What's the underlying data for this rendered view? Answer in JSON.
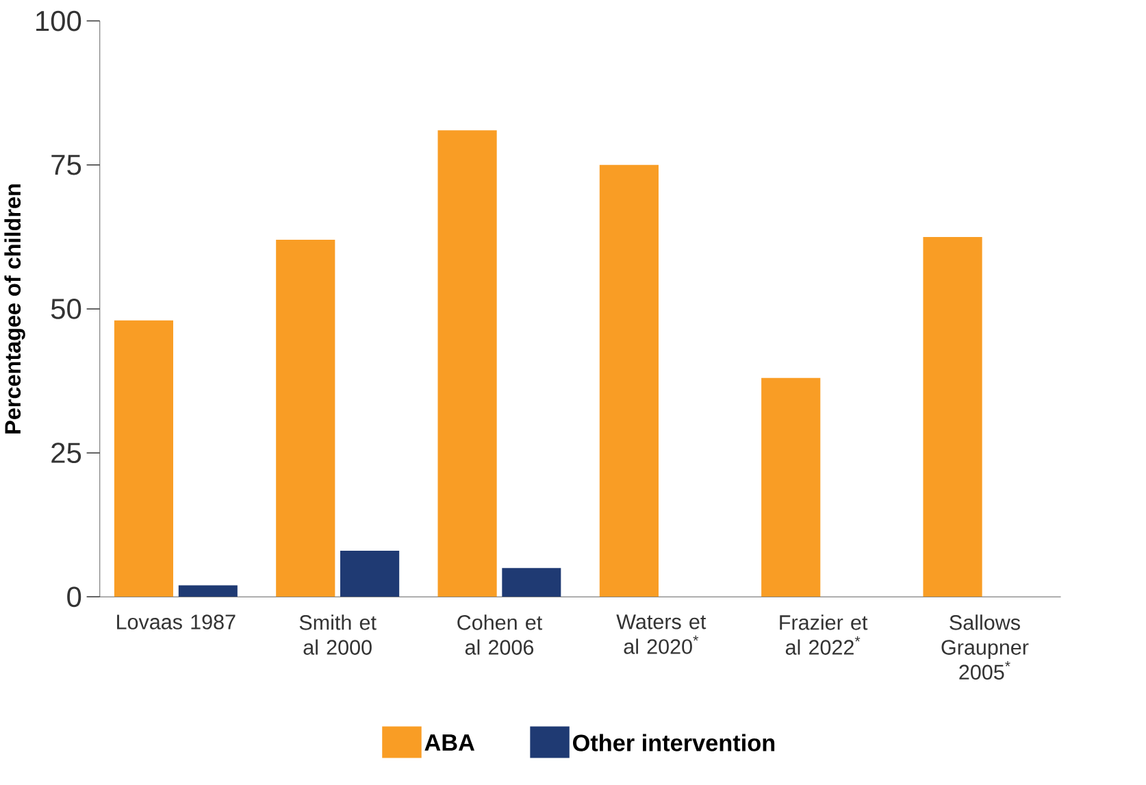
{
  "chart_data": {
    "type": "bar",
    "ylabel": "Percentagee of children",
    "categories": [
      "Lovaas 1987",
      "Smith et al 2000",
      "Cohen et al 2006",
      "Waters et al 2020$^{*}$",
      "Frazier et al 2022$^{*}$",
      "Sallows Graupner 2005$^{*}$"
    ],
    "series": [
      {
        "name": "ABA",
        "color": "#f99d25",
        "values": [
          48,
          62,
          81,
          75,
          38,
          62.5
        ]
      },
      {
        "name": "Other intervention",
        "color": "#1f3a73",
        "values": [
          2,
          8,
          5,
          null,
          null,
          null
        ]
      }
    ],
    "ylim": [
      0,
      100
    ],
    "yticks": [
      0,
      25,
      50,
      75,
      100
    ],
    "legend": "bottom"
  }
}
